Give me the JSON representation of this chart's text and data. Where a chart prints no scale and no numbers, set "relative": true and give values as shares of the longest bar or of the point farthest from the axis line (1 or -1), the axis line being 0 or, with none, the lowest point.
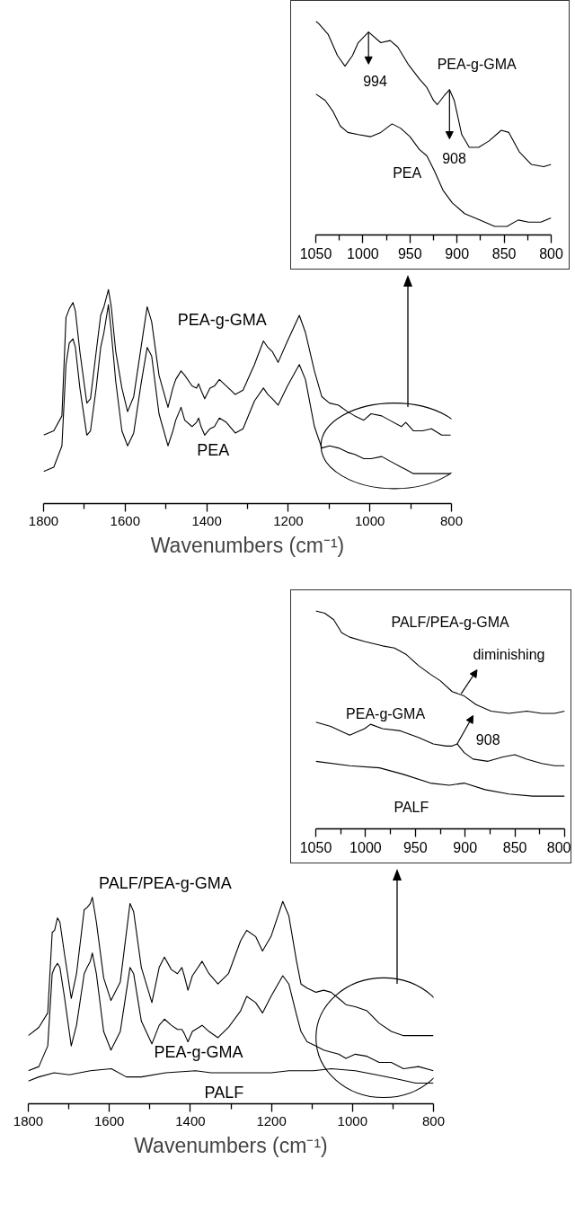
{
  "chart_data": [
    {
      "type": "line",
      "relative": true,
      "xlim": [
        1050,
        800
      ],
      "xticks": [
        1050,
        {
          "value": 1025,
          "label": null
        },
        1000,
        {
          "value": 975,
          "label": null
        },
        950,
        {
          "value": 925,
          "label": null
        },
        900,
        {
          "value": 875,
          "label": null
        },
        850,
        {
          "value": 825,
          "label": null
        },
        800
      ],
      "series": [
        {
          "name": "PEA-g-GMA",
          "color": "#000000",
          "x": [
            1050,
            1047,
            1037,
            1027,
            1019,
            1011,
            1005,
            994,
            981,
            971,
            963,
            952,
            940,
            932,
            925,
            921,
            914,
            908,
            903,
            895,
            887,
            877,
            866,
            853,
            845,
            834,
            821,
            808,
            800
          ],
          "values": [
            1.0,
            0.99,
            0.94,
            0.84,
            0.79,
            0.84,
            0.9,
            0.95,
            0.9,
            0.91,
            0.88,
            0.8,
            0.73,
            0.69,
            0.63,
            0.61,
            0.65,
            0.68,
            0.63,
            0.47,
            0.41,
            0.41,
            0.44,
            0.49,
            0.48,
            0.39,
            0.33,
            0.32,
            0.33
          ]
        },
        {
          "name": "PEA",
          "color": "#000000",
          "x": [
            1050,
            1040,
            1032,
            1024,
            1016,
            1005,
            992,
            981,
            969,
            960,
            950,
            940,
            932,
            924,
            915,
            905,
            892,
            876,
            860,
            847,
            835,
            824,
            811,
            800
          ],
          "values": [
            0.66,
            0.63,
            0.58,
            0.51,
            0.48,
            0.47,
            0.46,
            0.48,
            0.52,
            0.5,
            0.46,
            0.4,
            0.37,
            0.3,
            0.21,
            0.15,
            0.1,
            0.07,
            0.04,
            0.04,
            0.07,
            0.06,
            0.06,
            0.08
          ]
        }
      ],
      "annotations": [
        {
          "text": "994",
          "x": 994,
          "y": 0.95
        },
        {
          "text": "908",
          "x": 908,
          "y": 0.68
        }
      ]
    },
    {
      "type": "line",
      "relative": true,
      "xlim": [
        1800,
        800
      ],
      "xlabel": "Wavenumbers (cm⁻¹)",
      "xticks": [
        1800,
        {
          "value": 1700,
          "label": null
        },
        1600,
        {
          "value": 1500,
          "label": null
        },
        1400,
        {
          "value": 1300,
          "label": null
        },
        1200,
        {
          "value": 1100,
          "label": null
        },
        1000,
        {
          "value": 900,
          "label": null
        },
        800
      ],
      "series": [
        {
          "name": "PEA-g-GMA",
          "color": "#000000",
          "x": [
            1800,
            1775,
            1755,
            1745,
            1737,
            1728,
            1722,
            1711,
            1694,
            1685,
            1671,
            1660,
            1652,
            1641,
            1634,
            1623,
            1608,
            1594,
            1579,
            1561,
            1546,
            1535,
            1517,
            1495,
            1483,
            1476,
            1463,
            1454,
            1436,
            1425,
            1420,
            1414,
            1405,
            1392,
            1381,
            1369,
            1352,
            1330,
            1311,
            1283,
            1261,
            1250,
            1239,
            1225,
            1202,
            1173,
            1158,
            1136,
            1118,
            1099,
            1077,
            1055,
            1037,
            1015,
            997,
            971,
            952,
            923,
            912,
            893,
            871,
            849,
            824,
            802
          ],
          "values": [
            0.32,
            0.34,
            0.41,
            0.87,
            0.91,
            0.94,
            0.9,
            0.71,
            0.47,
            0.49,
            0.71,
            0.88,
            0.92,
            1.0,
            0.92,
            0.71,
            0.54,
            0.43,
            0.5,
            0.73,
            0.92,
            0.85,
            0.6,
            0.45,
            0.54,
            0.58,
            0.62,
            0.6,
            0.55,
            0.54,
            0.56,
            0.53,
            0.49,
            0.54,
            0.55,
            0.58,
            0.55,
            0.51,
            0.53,
            0.65,
            0.76,
            0.73,
            0.71,
            0.66,
            0.76,
            0.88,
            0.8,
            0.62,
            0.5,
            0.47,
            0.46,
            0.43,
            0.41,
            0.39,
            0.42,
            0.41,
            0.39,
            0.36,
            0.38,
            0.34,
            0.34,
            0.35,
            0.32,
            0.32
          ]
        },
        {
          "name": "PEA",
          "color": "#000000",
          "x": [
            1800,
            1775,
            1755,
            1745,
            1737,
            1728,
            1722,
            1711,
            1694,
            1685,
            1671,
            1660,
            1652,
            1641,
            1634,
            1623,
            1608,
            1594,
            1579,
            1561,
            1546,
            1535,
            1517,
            1495,
            1483,
            1476,
            1463,
            1454,
            1436,
            1425,
            1420,
            1414,
            1405,
            1392,
            1381,
            1369,
            1352,
            1330,
            1311,
            1283,
            1261,
            1250,
            1239,
            1225,
            1202,
            1173,
            1158,
            1136,
            1118,
            1099,
            1077,
            1055,
            1037,
            1015,
            997,
            971,
            952,
            923,
            912,
            893,
            871,
            849,
            824,
            802
          ],
          "values": [
            0.15,
            0.17,
            0.27,
            0.65,
            0.75,
            0.77,
            0.73,
            0.54,
            0.32,
            0.34,
            0.54,
            0.73,
            0.8,
            0.93,
            0.8,
            0.57,
            0.34,
            0.27,
            0.33,
            0.56,
            0.73,
            0.69,
            0.42,
            0.27,
            0.34,
            0.39,
            0.45,
            0.39,
            0.36,
            0.38,
            0.4,
            0.36,
            0.32,
            0.35,
            0.36,
            0.4,
            0.38,
            0.33,
            0.35,
            0.48,
            0.54,
            0.51,
            0.49,
            0.46,
            0.55,
            0.65,
            0.58,
            0.36,
            0.26,
            0.27,
            0.26,
            0.24,
            0.23,
            0.21,
            0.21,
            0.22,
            0.2,
            0.17,
            0.16,
            0.14,
            0.14,
            0.14,
            0.14,
            0.14
          ]
        }
      ]
    },
    {
      "type": "line",
      "relative": true,
      "xlim": [
        1050,
        800
      ],
      "xticks": [
        1050,
        {
          "value": 1025,
          "label": null
        },
        1000,
        {
          "value": 975,
          "label": null
        },
        950,
        {
          "value": 925,
          "label": null
        },
        900,
        {
          "value": 875,
          "label": null
        },
        850,
        {
          "value": 825,
          "label": null
        },
        800
      ],
      "series": [
        {
          "name": "PALF/PEA-g-GMA",
          "color": "#000000",
          "x": [
            1050,
            1041,
            1032,
            1024,
            1016,
            1001,
            983,
            971,
            959,
            947,
            935,
            925,
            913,
            901,
            889,
            874,
            856,
            838,
            823,
            810,
            800
          ],
          "values": [
            1.0,
            0.99,
            0.96,
            0.9,
            0.88,
            0.86,
            0.84,
            0.83,
            0.8,
            0.75,
            0.71,
            0.68,
            0.63,
            0.61,
            0.57,
            0.54,
            0.53,
            0.54,
            0.53,
            0.53,
            0.54
          ]
        },
        {
          "name": "PEA-g-GMA",
          "color": "#000000",
          "x": [
            1050,
            1035,
            1016,
            1001,
            995,
            983,
            965,
            947,
            932,
            919,
            913,
            908,
            901,
            892,
            877,
            862,
            850,
            838,
            823,
            810,
            800
          ],
          "values": [
            0.49,
            0.47,
            0.43,
            0.46,
            0.48,
            0.46,
            0.45,
            0.42,
            0.39,
            0.38,
            0.38,
            0.39,
            0.35,
            0.32,
            0.31,
            0.33,
            0.34,
            0.32,
            0.3,
            0.29,
            0.29
          ]
        },
        {
          "name": "PALF",
          "color": "#000000",
          "x": [
            1050,
            1016,
            986,
            962,
            935,
            916,
            901,
            880,
            856,
            832,
            800
          ],
          "values": [
            0.31,
            0.29,
            0.28,
            0.25,
            0.21,
            0.2,
            0.21,
            0.18,
            0.16,
            0.15,
            0.15
          ]
        }
      ],
      "annotations": [
        {
          "text": "diminishing",
          "x": 904,
          "y": 0.62
        },
        {
          "text": "908",
          "x": 908,
          "y": 0.39
        }
      ]
    },
    {
      "type": "line",
      "relative": true,
      "xlim": [
        1800,
        800
      ],
      "xlabel": "Wavenumbers (cm⁻¹)",
      "xticks": [
        1800,
        {
          "value": 1700,
          "label": null
        },
        1600,
        {
          "value": 1500,
          "label": null
        },
        1400,
        {
          "value": 1300,
          "label": null
        },
        1200,
        {
          "value": 1100,
          "label": null
        },
        1000,
        {
          "value": 900,
          "label": null
        },
        800
      ],
      "series": [
        {
          "name": "PALF/PEA-g-GMA",
          "color": "#000000",
          "x": [
            1800,
            1774,
            1752,
            1741,
            1735,
            1728,
            1722,
            1711,
            1694,
            1681,
            1662,
            1655,
            1647,
            1642,
            1632,
            1614,
            1596,
            1573,
            1549,
            1540,
            1521,
            1495,
            1477,
            1464,
            1447,
            1432,
            1421,
            1415,
            1406,
            1395,
            1371,
            1354,
            1332,
            1306,
            1276,
            1261,
            1239,
            1222,
            1201,
            1172,
            1157,
            1138,
            1127,
            1112,
            1090,
            1071,
            1053,
            1034,
            1016,
            993,
            964,
            934,
            904,
            874,
            837,
            800
          ],
          "values": [
            0.33,
            0.37,
            0.44,
            0.83,
            0.84,
            0.9,
            0.88,
            0.73,
            0.51,
            0.63,
            0.94,
            0.95,
            0.97,
            1.0,
            0.88,
            0.61,
            0.5,
            0.59,
            0.97,
            0.93,
            0.66,
            0.49,
            0.66,
            0.71,
            0.65,
            0.63,
            0.66,
            0.62,
            0.55,
            0.62,
            0.69,
            0.63,
            0.58,
            0.63,
            0.79,
            0.84,
            0.81,
            0.74,
            0.81,
            0.98,
            0.91,
            0.69,
            0.58,
            0.56,
            0.54,
            0.55,
            0.54,
            0.51,
            0.48,
            0.47,
            0.45,
            0.39,
            0.35,
            0.33,
            0.33,
            0.33
          ]
        },
        {
          "name": "PEA-g-GMA",
          "color": "#000000",
          "x": [
            1800,
            1774,
            1752,
            1741,
            1735,
            1728,
            1722,
            1711,
            1694,
            1681,
            1662,
            1655,
            1647,
            1642,
            1632,
            1614,
            1596,
            1573,
            1549,
            1540,
            1521,
            1495,
            1477,
            1464,
            1447,
            1432,
            1421,
            1415,
            1406,
            1395,
            1371,
            1354,
            1332,
            1306,
            1276,
            1261,
            1239,
            1222,
            1201,
            1172,
            1157,
            1138,
            1127,
            1112,
            1090,
            1071,
            1053,
            1034,
            1016,
            993,
            964,
            934,
            904,
            874,
            837,
            800
          ],
          "values": [
            0.16,
            0.18,
            0.28,
            0.63,
            0.66,
            0.68,
            0.66,
            0.52,
            0.28,
            0.38,
            0.63,
            0.66,
            0.69,
            0.73,
            0.63,
            0.35,
            0.26,
            0.35,
            0.66,
            0.63,
            0.4,
            0.29,
            0.38,
            0.41,
            0.38,
            0.36,
            0.36,
            0.34,
            0.3,
            0.35,
            0.38,
            0.35,
            0.32,
            0.37,
            0.45,
            0.52,
            0.49,
            0.44,
            0.52,
            0.62,
            0.58,
            0.43,
            0.35,
            0.3,
            0.28,
            0.26,
            0.25,
            0.24,
            0.22,
            0.24,
            0.23,
            0.2,
            0.2,
            0.17,
            0.18,
            0.16
          ]
        },
        {
          "name": "PALF",
          "color": "#000000",
          "x": [
            1800,
            1774,
            1736,
            1699,
            1647,
            1595,
            1558,
            1521,
            1461,
            1387,
            1349,
            1305,
            1253,
            1201,
            1157,
            1097,
            1052,
            993,
            941,
            889,
            844,
            800
          ],
          "values": [
            0.11,
            0.13,
            0.15,
            0.14,
            0.16,
            0.17,
            0.13,
            0.13,
            0.15,
            0.16,
            0.15,
            0.15,
            0.15,
            0.15,
            0.16,
            0.16,
            0.17,
            0.16,
            0.14,
            0.12,
            0.1,
            0.1
          ]
        }
      ]
    }
  ]
}
